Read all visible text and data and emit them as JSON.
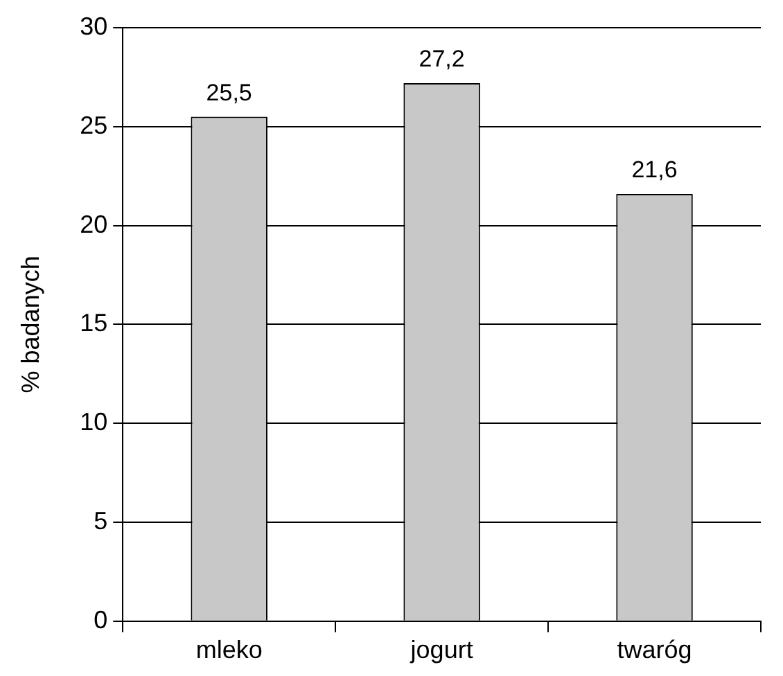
{
  "chart_data": {
    "type": "bar",
    "ylabel": "% badanych",
    "categories": [
      "mleko",
      "jogurt",
      "twaróg"
    ],
    "values": [
      25.5,
      27.2,
      21.6
    ],
    "value_labels": [
      "25,5",
      "27,2",
      "21,6"
    ],
    "color": "#c8c8c8",
    "ylim": [
      0,
      30
    ],
    "yticks": [
      0,
      5,
      10,
      15,
      20,
      25,
      30
    ],
    "grid": "y"
  }
}
